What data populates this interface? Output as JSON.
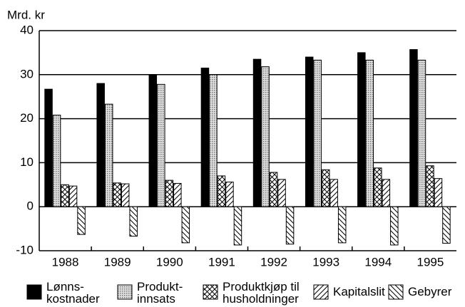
{
  "chart_data": {
    "type": "bar",
    "y_label": "Mrd. kr",
    "categories": [
      "1988",
      "1989",
      "1990",
      "1991",
      "1992",
      "1993",
      "1994",
      "1995"
    ],
    "series": [
      {
        "name": "Lønns-\nkostnader",
        "color": "#000000",
        "pattern": "solid",
        "values": [
          26.7,
          28,
          30,
          31.5,
          33.5,
          34,
          35,
          35.7
        ]
      },
      {
        "name": "Produkt-\ninnsats",
        "color": "#b0b0b0",
        "pattern": "dots",
        "values": [
          20.8,
          23.3,
          27.8,
          30,
          31.8,
          33.3,
          33.3,
          33.3
        ]
      },
      {
        "name": "Produktkjøp til\nhusholdninger",
        "color": "#000000",
        "pattern": "crosshatch",
        "values": [
          5,
          5.4,
          6,
          7,
          7.8,
          8.4,
          8.8,
          9.3
        ]
      },
      {
        "name": "Kapitalslit",
        "color": "#000000",
        "pattern": "diagonal",
        "values": [
          4.7,
          5.2,
          5.3,
          5.6,
          6.2,
          6.2,
          6.2,
          6.4
        ]
      },
      {
        "name": "Gebyrer",
        "color": "#000000",
        "pattern": "antidiagonal",
        "values": [
          -6.3,
          -6.7,
          -8.2,
          -8.7,
          -8.5,
          -8.2,
          -8.7,
          -8.3
        ]
      }
    ],
    "ylim": [
      -10,
      40
    ],
    "yticks": [
      -10,
      0,
      10,
      20,
      30,
      40
    ],
    "grid": true
  }
}
